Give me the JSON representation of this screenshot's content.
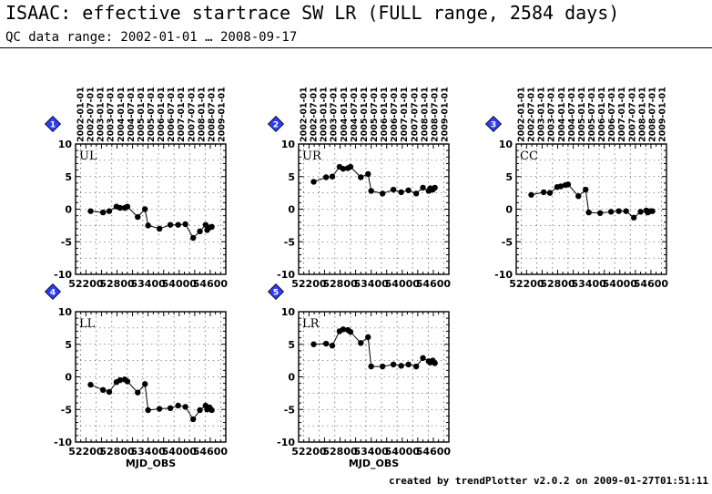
{
  "header": {
    "title": "ISAAC: effective startrace SW LR (FULL range, 2584 days)",
    "subtitle": "QC data range: 2002-01-01 … 2008-09-17"
  },
  "footer": {
    "credit": "created by trendPlotter v2.0.2 on 2009-01-27T01:51:11"
  },
  "chart_data": [
    {
      "type": "line",
      "panel_number": "1",
      "label": "UL",
      "xlim": [
        52000,
        54900
      ],
      "ylim": [
        -10,
        10
      ],
      "xticks": [
        "52200",
        "52800",
        "53400",
        "54000",
        "54600"
      ],
      "yticks": [
        "10",
        "5",
        "0",
        "-5",
        "-10"
      ],
      "date_ticks": [
        "2002-01-01",
        "2002-07-01",
        "2003-01-01",
        "2003-07-01",
        "2004-01-01",
        "2004-07-01",
        "2005-01-01",
        "2005-07-01",
        "2006-01-01",
        "2006-07-01",
        "2007-01-01",
        "2007-07-01",
        "2008-01-01",
        "2008-07-01",
        "2009-01-01"
      ],
      "xlabel": "",
      "grid": true,
      "x": [
        52290,
        52530,
        52650,
        52790,
        52860,
        52950,
        53000,
        53200,
        53340,
        53400,
        53620,
        53830,
        53980,
        54120,
        54270,
        54400,
        54510,
        54540,
        54590,
        54630
      ],
      "y": [
        -0.3,
        -0.5,
        -0.3,
        0.4,
        0.2,
        0.2,
        0.4,
        -1.2,
        0,
        -2.5,
        -3.0,
        -2.4,
        -2.4,
        -2.3,
        -4.4,
        -3.4,
        -2.4,
        -3.2,
        -2.8,
        -2.7
      ]
    },
    {
      "type": "line",
      "panel_number": "2",
      "label": "UR",
      "xlim": [
        52000,
        54900
      ],
      "ylim": [
        -10,
        10
      ],
      "xticks": [
        "52200",
        "52800",
        "53400",
        "54000",
        "54600"
      ],
      "yticks": [
        "10",
        "5",
        "0",
        "-5",
        "-10"
      ],
      "date_ticks": [
        "2002-01-01",
        "2002-07-01",
        "2003-01-01",
        "2003-07-01",
        "2004-01-01",
        "2004-07-01",
        "2005-01-01",
        "2005-07-01",
        "2006-01-01",
        "2006-07-01",
        "2007-01-01",
        "2007-07-01",
        "2008-01-01",
        "2008-07-01",
        "2009-01-01"
      ],
      "xlabel": "",
      "grid": true,
      "x": [
        52290,
        52530,
        52650,
        52790,
        52860,
        52950,
        53000,
        53200,
        53340,
        53400,
        53620,
        53830,
        53980,
        54120,
        54270,
        54400,
        54510,
        54540,
        54590,
        54630
      ],
      "y": [
        4.2,
        4.9,
        5.0,
        6.5,
        6.2,
        6.3,
        6.5,
        4.9,
        5.4,
        2.8,
        2.4,
        3.0,
        2.6,
        2.9,
        2.4,
        3.3,
        2.8,
        3.2,
        3.0,
        3.3
      ]
    },
    {
      "type": "line",
      "panel_number": "3",
      "label": "CC",
      "xlim": [
        52000,
        54900
      ],
      "ylim": [
        -10,
        10
      ],
      "xticks": [
        "52200",
        "52800",
        "53400",
        "54000",
        "54600"
      ],
      "yticks": [
        "10",
        "5",
        "0",
        "-5",
        "-10"
      ],
      "date_ticks": [
        "2002-01-01",
        "2002-07-01",
        "2003-01-01",
        "2003-07-01",
        "2004-01-01",
        "2004-07-01",
        "2005-01-01",
        "2005-07-01",
        "2006-01-01",
        "2006-07-01",
        "2007-01-01",
        "2007-07-01",
        "2008-01-01",
        "2008-07-01",
        "2009-01-01"
      ],
      "xlabel": "",
      "grid": true,
      "x": [
        52290,
        52530,
        52650,
        52790,
        52860,
        52950,
        53000,
        53200,
        53340,
        53400,
        53620,
        53830,
        53980,
        54120,
        54270,
        54400,
        54510,
        54540,
        54590,
        54630
      ],
      "y": [
        2.2,
        2.6,
        2.5,
        3.4,
        3.5,
        3.7,
        3.8,
        2.0,
        3.0,
        -0.5,
        -0.6,
        -0.4,
        -0.3,
        -0.3,
        -1.3,
        -0.4,
        -0.2,
        -0.5,
        -0.3,
        -0.3
      ]
    },
    {
      "type": "line",
      "panel_number": "4",
      "label": "LL",
      "xlim": [
        52000,
        54900
      ],
      "ylim": [
        -10,
        10
      ],
      "xticks": [
        "52200",
        "52800",
        "53400",
        "54000",
        "54600"
      ],
      "yticks": [
        "10",
        "5",
        "0",
        "-5",
        "-10"
      ],
      "date_ticks": [],
      "xlabel": "MJD_OBS",
      "grid": true,
      "x": [
        52290,
        52530,
        52650,
        52790,
        52860,
        52950,
        53000,
        53200,
        53340,
        53400,
        53620,
        53830,
        53980,
        54120,
        54270,
        54400,
        54510,
        54540,
        54590,
        54630
      ],
      "y": [
        -1.2,
        -2.0,
        -2.3,
        -0.8,
        -0.5,
        -0.4,
        -0.7,
        -2.4,
        -1.1,
        -5.1,
        -4.9,
        -4.8,
        -4.4,
        -4.6,
        -6.5,
        -5.1,
        -4.4,
        -5.0,
        -4.7,
        -5.1
      ]
    },
    {
      "type": "line",
      "panel_number": "5",
      "label": "LR",
      "xlim": [
        52000,
        54900
      ],
      "ylim": [
        -10,
        10
      ],
      "xticks": [
        "52200",
        "52800",
        "53400",
        "54000",
        "54600"
      ],
      "yticks": [
        "10",
        "5",
        "0",
        "-5",
        "-10"
      ],
      "date_ticks": [],
      "xlabel": "MJD_OBS",
      "grid": true,
      "x": [
        52290,
        52530,
        52650,
        52790,
        52860,
        52950,
        53000,
        53200,
        53340,
        53400,
        53620,
        53830,
        53980,
        54120,
        54270,
        54400,
        54510,
        54540,
        54590,
        54630
      ],
      "y": [
        5.0,
        5.1,
        4.8,
        7.0,
        7.3,
        7.2,
        6.9,
        5.2,
        6.1,
        1.6,
        1.6,
        1.9,
        1.7,
        1.9,
        1.6,
        2.9,
        2.4,
        2.2,
        2.5,
        2.1
      ]
    }
  ]
}
